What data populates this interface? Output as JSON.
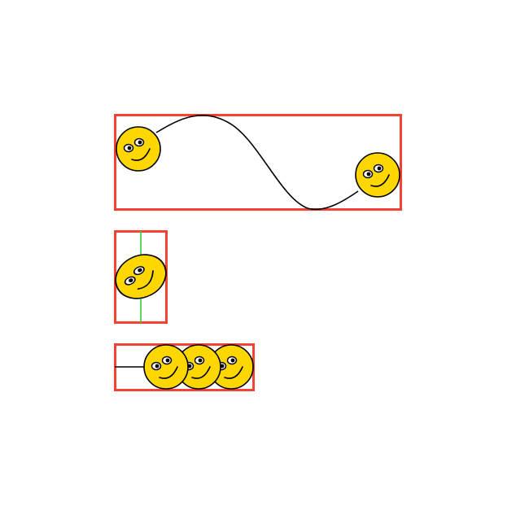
{
  "colors": {
    "frame": "#f44336",
    "face": "#ffd700",
    "outline": "#000000",
    "axis": "#33cc33",
    "background": "#ffffff"
  },
  "icons": {
    "face": "smiley-face-icon"
  },
  "panels": [
    {
      "name": "motion-path-panel",
      "smiley_count": 2,
      "shows_path": true
    },
    {
      "name": "rotation-panel",
      "smiley_count": 1,
      "shows_axis": true
    },
    {
      "name": "trail-panel",
      "smiley_count": 3,
      "shows_trail_line": true
    }
  ]
}
